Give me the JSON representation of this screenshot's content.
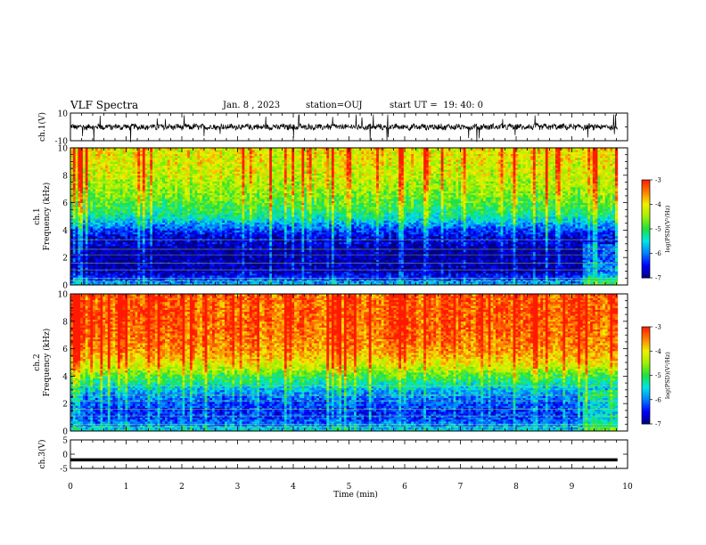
{
  "header": {
    "title": "VLF Spectra",
    "date": "Jan. 8 , 2023",
    "station": "station=OUJ",
    "start": "start UT =  19: 40: 0"
  },
  "chart_data": [
    {
      "type": "line",
      "panel": "ch1-waveform",
      "ylabel": "ch.1(V)",
      "yticks": [
        "10",
        "-10"
      ],
      "ylim": [
        -10,
        10
      ],
      "xlim": [
        0,
        10
      ],
      "description_values": {
        "baseline": 0,
        "noise_amplitude": 2,
        "gap_start_min": 9.82
      }
    },
    {
      "type": "heatmap",
      "panel": "ch1-spectrogram",
      "ylabel": "ch.1\nFrequency (kHz)",
      "ylabel_top": "ch.1",
      "ylabel_bottom": "Frequency (kHz)",
      "yticks": [
        "0",
        "2",
        "4",
        "6",
        "8",
        "10"
      ],
      "ylim": [
        0,
        10
      ],
      "xlim": [
        0,
        9.82
      ],
      "colorbar": {
        "label": "log(PSD)(V²/Hz)",
        "ticks": [
          "-3",
          "-4",
          "-5",
          "-6",
          "-7"
        ],
        "range": [
          -7,
          -3
        ]
      },
      "profile_freq_khz": [
        0,
        0.5,
        1,
        1.5,
        2,
        2.5,
        3,
        3.5,
        4,
        4.5,
        5,
        6,
        7,
        8,
        9,
        10
      ],
      "profile_logpsd": [
        -5.6,
        -6.3,
        -6.8,
        -6.8,
        -6.9,
        -6.9,
        -6.7,
        -6.6,
        -6.3,
        -5.8,
        -5.3,
        -4.8,
        -4.5,
        -4.2,
        -4.1,
        -4.0
      ]
    },
    {
      "type": "heatmap",
      "panel": "ch2-spectrogram",
      "ylabel_top": "ch.2",
      "ylabel_bottom": "Frequency (kHz)",
      "yticks": [
        "0",
        "2",
        "4",
        "6",
        "8",
        "10"
      ],
      "ylim": [
        0,
        10
      ],
      "xlim": [
        0,
        9.82
      ],
      "colorbar": {
        "label": "log(PSD)(V²/Hz)",
        "ticks": [
          "-3",
          "-4",
          "-5",
          "-6",
          "-7"
        ],
        "range": [
          -7,
          -3
        ]
      },
      "profile_freq_khz": [
        0,
        0.5,
        1,
        1.5,
        2,
        2.5,
        3,
        3.5,
        4,
        4.5,
        5,
        6,
        7,
        8,
        9,
        10
      ],
      "profile_logpsd": [
        -5.4,
        -6.0,
        -6.3,
        -6.3,
        -6.2,
        -6.0,
        -5.7,
        -5.3,
        -4.9,
        -4.4,
        -4.0,
        -3.6,
        -3.4,
        -3.3,
        -3.3,
        -3.3
      ]
    },
    {
      "type": "line",
      "panel": "ch3-waveform",
      "ylabel": "ch.3(V)",
      "yticks": [
        "5",
        "0",
        "-5"
      ],
      "ylim": [
        -5,
        5
      ],
      "xlim": [
        0,
        10
      ],
      "description_values": {
        "constant_level": -2,
        "end_min": 9.82
      }
    }
  ],
  "xaxis": {
    "label": "Time (min)",
    "ticks": [
      "0",
      "1",
      "2",
      "3",
      "4",
      "5",
      "6",
      "7",
      "8",
      "9",
      "10"
    ],
    "range": [
      0,
      10
    ]
  },
  "colors": {
    "colormap": [
      "#00007f",
      "#0000ff",
      "#0080ff",
      "#00e5e5",
      "#20e040",
      "#a0f000",
      "#f0f000",
      "#ff8000",
      "#ff1a00"
    ],
    "trace": "#000000"
  }
}
